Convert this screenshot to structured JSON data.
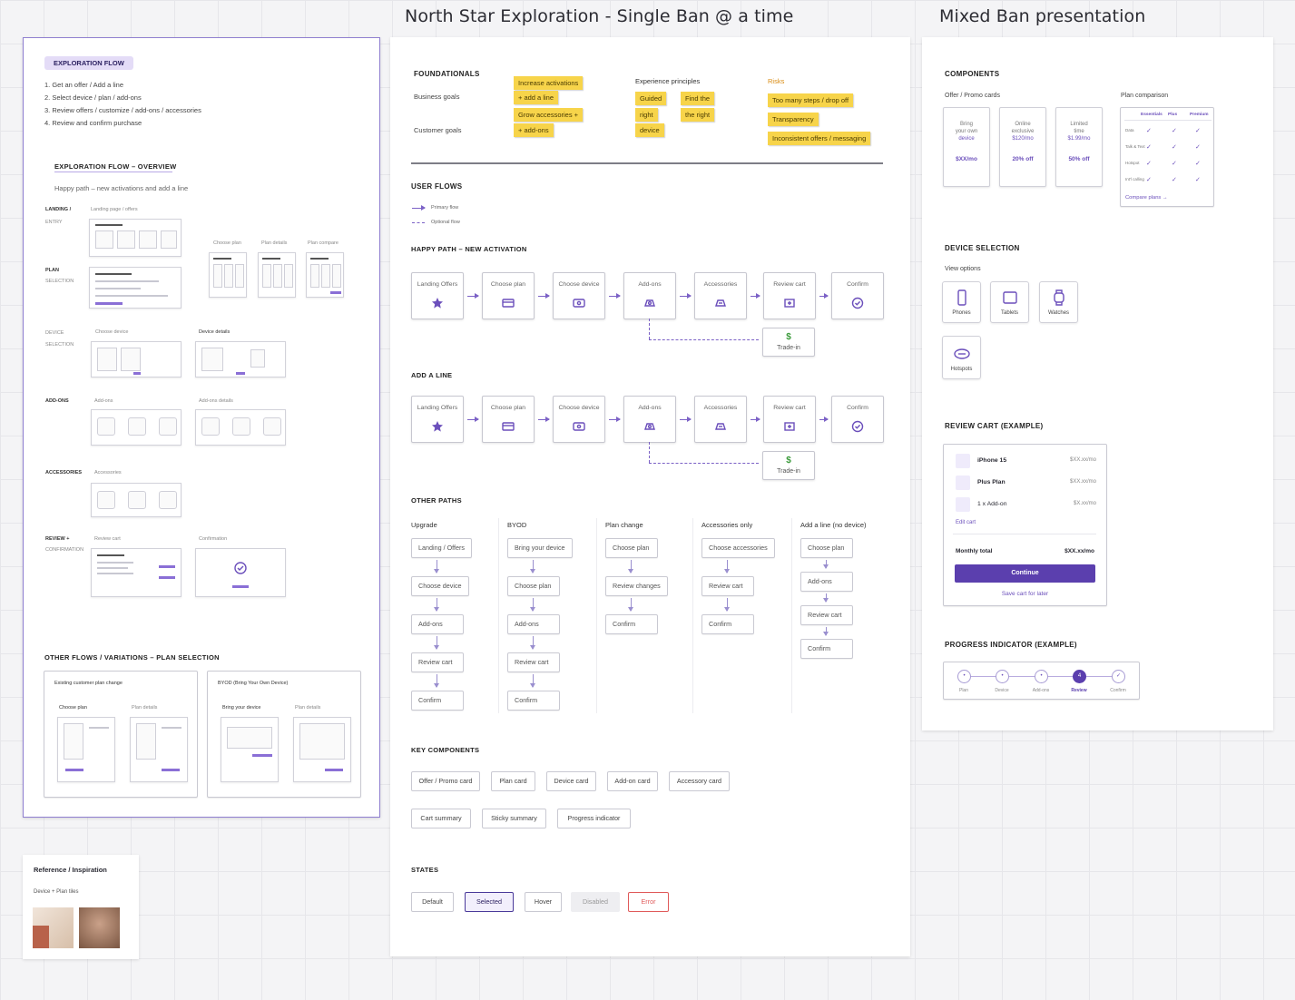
{
  "titles": {
    "center": "North Star Exploration - Single Ban @ a time",
    "right": "Mixed Ban presentation"
  },
  "left_board": {
    "flow_badge": "EXPLORATION FLOW",
    "steps": [
      "1.  Get an offer / Add a line",
      "2.  Select device / plan / add-ons",
      "3.  Review offers / customize / add-ons / accessories",
      "4.  Review and confirm purchase"
    ],
    "overview_title": "EXPLORATION FLOW – OVERVIEW",
    "overview_subtitle": "Happy path – new activations and add a line",
    "rows": {
      "landing": "LANDING /",
      "landing2": "ENTRY",
      "plan": "PLAN",
      "plan2": "SELECTION",
      "device": "DEVICE",
      "device2": "SELECTION",
      "addons": "ADD-ONS",
      "accessories": "ACCESSORIES",
      "review": "REVIEW +",
      "review2": "CONFIRMATION"
    },
    "labels": {
      "landing_page": "Landing page / offers",
      "choose_plan": "Choose plan",
      "plan_details": "Plan details",
      "plan_compare": "Plan compare",
      "choose_device": "Choose device",
      "device_details": "Device details",
      "addons": "Add-ons",
      "addons_details": "Add-ons details",
      "accessories": "Accessories",
      "review_cart": "Review cart",
      "confirmation": "Confirmation"
    },
    "other_flows_title": "OTHER FLOWS / VARIATIONS – PLAN SELECTION",
    "variation_a": "Existing customer plan change",
    "variation_b": "BYOD (Bring Your Own Device)",
    "var_labels": {
      "choose_plan": "Choose plan",
      "plan_details": "Plan details",
      "bring_device": "Bring your device",
      "plan_details2": "Plan details"
    }
  },
  "reference": {
    "title": "Reference / Inspiration",
    "subtitle": "Device + Plan tiles"
  },
  "center_board": {
    "foundationals": "FOUNDATIONALS",
    "business_goals": "Business goals",
    "customer_goals": "Customer goals",
    "experience_principles": "Experience principles",
    "risks": "Risks",
    "stickies_goals": [
      "Increase activations",
      "+ add a line",
      "Grow accessories +",
      "+ add-ons"
    ],
    "stickies_principles": [
      "Guided",
      "Find the",
      "right",
      "the right",
      "device"
    ],
    "stickies_risks": [
      "Too many steps / drop off",
      "Transparency",
      "Inconsistent offers / messaging"
    ],
    "user_flows": "USER FLOWS",
    "legend_primary": "Primary flow",
    "legend_optional": "Optional flow",
    "happy_path": "HAPPY PATH – NEW ACTIVATION",
    "happy_nodes": [
      "Landing Offers",
      "Choose plan",
      "Choose device",
      "Add-ons",
      "Accessories",
      "Review cart",
      "Confirm"
    ],
    "trade_in": "Trade-in",
    "add_line": "ADD A LINE",
    "add_line_nodes": [
      "Landing Offers",
      "Choose plan",
      "Choose device",
      "Add-ons",
      "Accessories",
      "Review cart",
      "Confirm"
    ],
    "other_paths": "OTHER PATHS",
    "paths": [
      {
        "title": "Upgrade",
        "steps": [
          "Landing / Offers",
          "Choose device",
          "Add-ons",
          "Review cart",
          "Confirm"
        ]
      },
      {
        "title": "BYOD",
        "steps": [
          "Bring your device",
          "Choose plan",
          "Add-ons",
          "Review cart",
          "Confirm"
        ]
      },
      {
        "title": "Plan change",
        "steps": [
          "Choose plan",
          "Review changes",
          "Confirm"
        ]
      },
      {
        "title": "Accessories only",
        "steps": [
          "Choose accessories",
          "Review cart",
          "Confirm"
        ]
      },
      {
        "title": "Add a line (no device)",
        "steps": [
          "Choose plan",
          "Add-ons",
          "Review cart",
          "Confirm"
        ]
      }
    ],
    "key_components": "KEY COMPONENTS",
    "components_row1": [
      "Offer / Promo card",
      "Plan card",
      "Device card",
      "Add-on card",
      "Accessory card"
    ],
    "components_row2": [
      "Cart summary",
      "Sticky summary",
      "Progress indicator"
    ],
    "states": "STATES",
    "state_labels": [
      "Default",
      "Selected",
      "Hover",
      "Disabled",
      "Error"
    ]
  },
  "right_board": {
    "components": "COMPONENTS",
    "offer_cards": "Offer / Promo cards",
    "plan_comparison": "Plan comparison",
    "cards": [
      {
        "line1": "Bring",
        "line2": "your own",
        "line3": "device",
        "price": "$XX/mo"
      },
      {
        "line1": "Online",
        "line2": "exclusive",
        "line3": "$120/mo",
        "price": "20% off"
      },
      {
        "line1": "Limited",
        "line2": "time",
        "line3": "$1.99/mo",
        "price": "50% off"
      }
    ],
    "plan_table_cols": [
      "Essentials",
      "Plus",
      "Premium"
    ],
    "plan_table_rows": [
      "Data",
      "Talk & Text",
      "Hotspot",
      "Int'l calling"
    ],
    "compare_link": "Compare plans →",
    "device_selection": "DEVICE SELECTION",
    "view_options": "View options",
    "devices": [
      "Phones",
      "Tablets",
      "Watches",
      "Hotspots"
    ],
    "review_cart": "REVIEW CART (EXAMPLE)",
    "cart_items": [
      {
        "name": "iPhone 15",
        "price": "$XX.xx/mo"
      },
      {
        "name": "Plus Plan",
        "price": "$XX.xx/mo"
      },
      {
        "name": "1 x Add-on",
        "price": "$X.xx/mo"
      }
    ],
    "edit_cart": "Edit cart",
    "monthly_total_label": "Monthly total",
    "monthly_total_value": "$XX.xx/mo",
    "continue": "Continue",
    "save_later": "Save cart for later",
    "progress_title": "PROGRESS INDICATOR (EXAMPLE)",
    "progress_steps": [
      "Plan",
      "Device",
      "Add-ons",
      "Review",
      "Confirm"
    ],
    "progress_current": "4"
  },
  "colors": {
    "accent": "#6b4fbb",
    "sticky": "#f7d44a",
    "error": "#e05a5a",
    "trade_in": "#3a9a3a"
  }
}
